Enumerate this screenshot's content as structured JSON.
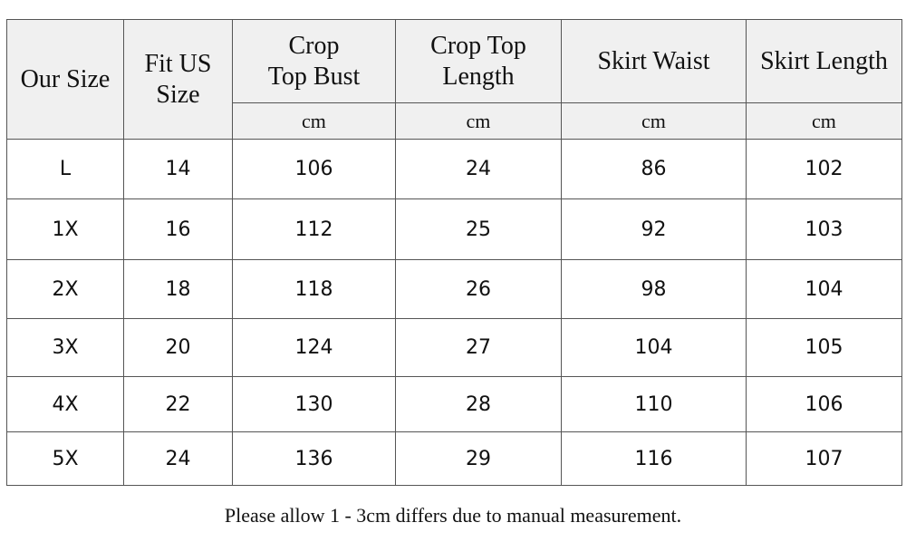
{
  "table": {
    "columns": [
      "Our Size",
      "Fit US\nSize",
      "Crop\nTop Bust",
      "Crop Top\nLength",
      "Skirt Waist",
      "Skirt Length"
    ],
    "units": [
      "cm",
      "cm",
      "cm",
      "cm"
    ],
    "rows": [
      [
        "L",
        14,
        106,
        24,
        86,
        102
      ],
      [
        "1X",
        16,
        112,
        25,
        92,
        103
      ],
      [
        "2X",
        18,
        118,
        26,
        98,
        104
      ],
      [
        "3X",
        20,
        124,
        27,
        104,
        105
      ],
      [
        "4X",
        22,
        130,
        28,
        110,
        106
      ],
      [
        "5X",
        24,
        136,
        29,
        116,
        107
      ]
    ]
  },
  "note": "Please allow 1 - 3cm differs due to manual measurement."
}
